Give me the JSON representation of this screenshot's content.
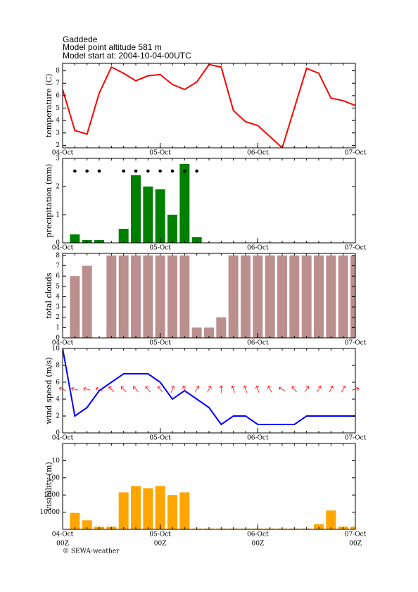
{
  "header": [
    "Gaddede",
    "Model point altitude  581 m",
    "Model start at: 2004-10-04-00UTC"
  ],
  "credit": "© SEWA-weather",
  "chart_data": [
    {
      "type": "line",
      "ylabel": "temperature (C)",
      "color": "#ff0000",
      "x": [
        0,
        3,
        6,
        9,
        12,
        15,
        18,
        21,
        24,
        27,
        30,
        33,
        36,
        39,
        42,
        45,
        48,
        51,
        54,
        57,
        60,
        63,
        66,
        69,
        72
      ],
      "values": [
        6.5,
        3.2,
        2.9,
        6.2,
        8.3,
        7.8,
        7.2,
        7.6,
        7.7,
        6.9,
        6.5,
        7.1,
        8.5,
        8.3,
        4.8,
        3.9,
        3.6,
        2.7,
        1.8,
        5.0,
        8.2,
        7.8,
        5.8,
        5.6,
        5.2
      ],
      "xlim": [
        0,
        72
      ],
      "xticks": [
        {
          "value": 0,
          "label": "04-Oct"
        },
        {
          "value": 24,
          "label": "05-Oct"
        },
        {
          "value": 48,
          "label": "06-Oct"
        },
        {
          "value": 72,
          "label": "07-Oct"
        }
      ],
      "ylim": [
        1.8,
        8.6
      ],
      "yticks": [
        2,
        3,
        4,
        5,
        6,
        7,
        8
      ]
    },
    {
      "type": "bar",
      "ylabel": "precipitation (mm)",
      "color": "#008000",
      "x": [
        3,
        6,
        9,
        15,
        18,
        21,
        24,
        27,
        30,
        33
      ],
      "values": [
        0.3,
        0.1,
        0.1,
        0.5,
        2.4,
        2.0,
        1.9,
        1.0,
        2.8,
        0.2
      ],
      "xlim": [
        0,
        72
      ],
      "xticks": [
        {
          "value": 0,
          "label": "04-Oct"
        },
        {
          "value": 24,
          "label": "05-Oct"
        },
        {
          "value": 48,
          "label": "06-Oct"
        },
        {
          "value": 72,
          "label": "07-Oct"
        }
      ],
      "ylim": [
        0,
        3
      ],
      "yticks": [
        0,
        1,
        2,
        3
      ]
    },
    {
      "type": "bar",
      "ylabel": "total clouds",
      "color": "#bc8f8f",
      "x": [
        3,
        6,
        9,
        12,
        15,
        18,
        21,
        24,
        27,
        30,
        33,
        36,
        39,
        42,
        45,
        48,
        51,
        54,
        57,
        60,
        63,
        66,
        69,
        72
      ],
      "values": [
        6,
        7,
        0,
        8,
        8,
        8,
        8,
        8,
        8,
        8,
        1,
        1,
        2,
        8,
        8,
        8,
        8,
        8,
        8,
        8,
        8,
        8,
        8,
        8
      ],
      "xlim": [
        0,
        72
      ],
      "xticks": [
        {
          "value": 0,
          "label": "04-Oct"
        },
        {
          "value": 24,
          "label": "05-Oct"
        },
        {
          "value": 48,
          "label": "06-Oct"
        },
        {
          "value": 72,
          "label": "07-Oct"
        }
      ],
      "ylim": [
        0,
        8.2
      ],
      "yticks": [
        0,
        1,
        2,
        3,
        4,
        5,
        6,
        7,
        8
      ]
    },
    {
      "type": "line",
      "ylabel": "wind speed (m/s)",
      "color": "#0000ff",
      "x": [
        0,
        3,
        6,
        9,
        12,
        15,
        18,
        21,
        24,
        27,
        30,
        33,
        36,
        39,
        42,
        45,
        48,
        51,
        54,
        57,
        60,
        63,
        66,
        69,
        72
      ],
      "values": [
        10,
        2,
        3,
        5,
        6,
        7,
        7,
        7,
        6,
        4,
        5,
        4,
        3,
        1,
        2,
        2,
        1,
        1,
        1,
        1,
        2,
        2,
        2,
        2,
        2
      ],
      "arrows": {
        "color": "#ff0000",
        "values": [
          290,
          285,
          285,
          290,
          315,
          315,
          315,
          320,
          320,
          20,
          340,
          30,
          30,
          0,
          340,
          340,
          340,
          330,
          300,
          320,
          30,
          30,
          30,
          30,
          75
        ]
      },
      "xlim": [
        0,
        72
      ],
      "xticks": [
        {
          "value": 0,
          "label": "04-Oct"
        },
        {
          "value": 24,
          "label": "05-Oct"
        },
        {
          "value": 48,
          "label": "06-Oct"
        },
        {
          "value": 72,
          "label": "07-Oct"
        }
      ],
      "ylim": [
        0,
        10
      ],
      "yticks": [
        0,
        2,
        4,
        6,
        8,
        10
      ]
    },
    {
      "type": "bar",
      "ylabel": "visibility (m)",
      "color": "#ffa500",
      "log": true,
      "x": [
        3,
        6,
        9,
        12,
        15,
        18,
        21,
        24,
        27,
        30,
        33,
        36,
        39,
        42,
        45,
        48,
        51,
        54,
        57,
        60,
        63,
        66,
        69,
        72
      ],
      "values": [
        11000,
        30000,
        70000,
        70000,
        700,
        300,
        400,
        300,
        1000,
        700,
        90000,
        90000,
        90000,
        90000,
        90000,
        90000,
        90000,
        90000,
        90000,
        90000,
        50000,
        8000,
        70000,
        70000
      ],
      "xlim": [
        0,
        72
      ],
      "xticks": [
        {
          "value": 0,
          "label": "04-Oct"
        },
        {
          "value": 24,
          "label": "05-Oct"
        },
        {
          "value": 48,
          "label": "06-Oct"
        },
        {
          "value": 72,
          "label": "07-Oct"
        }
      ],
      "xsublabels": [
        "00Z",
        "00Z",
        "00Z",
        "00Z"
      ],
      "ylim": [
        100000,
        1
      ],
      "yticks": [
        10,
        100,
        1000,
        10000
      ]
    }
  ]
}
